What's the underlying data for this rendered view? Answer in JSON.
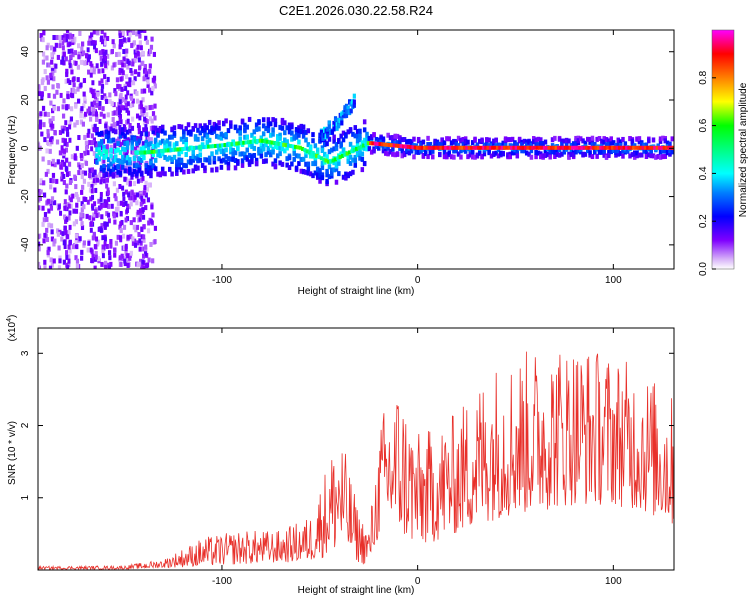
{
  "title": "C2E1.2026.030.22.58.R24",
  "colors": {
    "snr_line": "#e8302a",
    "axis": "#000000",
    "background": "#ffffff"
  },
  "chart_data": [
    {
      "type": "heatmap",
      "name": "spectrogram",
      "xlabel": "Height of straight line (km)",
      "ylabel": "Frequency (Hz)",
      "xlim": [
        -194,
        131
      ],
      "ylim": [
        -50,
        49
      ],
      "xticks": [
        -100,
        0,
        100
      ],
      "xtick_labels": [
        "-100",
        "0",
        "100"
      ],
      "yticks": [
        -40,
        -20,
        0,
        20,
        40
      ],
      "ytick_labels": [
        "-40",
        "-20",
        "0",
        "20",
        "40"
      ],
      "colorbar": {
        "label": "Normalized spectral amplitude",
        "range": [
          0,
          1
        ],
        "ticks": [
          0.0,
          0.2,
          0.4,
          0.6,
          0.8
        ],
        "tick_labels": [
          "0.0",
          "0.2",
          "0.4",
          "0.6",
          "0.8"
        ]
      },
      "ridge": {
        "description": "main frequency ridge near 0 Hz with bright core for heights > -25 km",
        "points": [
          {
            "x": -140,
            "y": -2
          },
          {
            "x": -100,
            "y": 1
          },
          {
            "x": -80,
            "y": 3
          },
          {
            "x": -60,
            "y": 0
          },
          {
            "x": -45,
            "y": -6
          },
          {
            "x": -35,
            "y": -2
          },
          {
            "x": -25,
            "y": 2
          },
          {
            "x": 0,
            "y": 0
          },
          {
            "x": 50,
            "y": 0
          },
          {
            "x": 100,
            "y": 0
          },
          {
            "x": 131,
            "y": 0
          }
        ],
        "branch": [
          {
            "x": -50,
            "y": 5
          },
          {
            "x": -40,
            "y": 11
          },
          {
            "x": -32,
            "y": 20
          }
        ]
      }
    },
    {
      "type": "line",
      "name": "snr",
      "xlabel": "Height of straight line (km)",
      "ylabel": "SNR (10 * v/v)",
      "multiplier_label": "(x10",
      "multiplier_exp": "4",
      "multiplier_close": ")",
      "xlim": [
        -194,
        131
      ],
      "ylim": [
        0,
        3.35
      ],
      "xticks": [
        -100,
        0,
        100
      ],
      "xtick_labels": [
        "-100",
        "0",
        "100"
      ],
      "yticks": [
        1,
        2,
        3
      ],
      "ytick_labels": [
        "1",
        "2",
        "3"
      ],
      "envelope": {
        "x": [
          -194,
          -150,
          -130,
          -110,
          -90,
          -70,
          -55,
          -45,
          -40,
          -30,
          -25,
          -18,
          -10,
          0,
          10,
          20,
          30,
          40,
          60,
          80,
          100,
          115,
          131
        ],
        "upper": [
          0.05,
          0.06,
          0.15,
          0.45,
          0.55,
          0.55,
          0.75,
          1.6,
          2.0,
          0.8,
          0.6,
          2.2,
          2.6,
          1.9,
          2.0,
          2.2,
          2.6,
          2.9,
          3.1,
          3.2,
          3.0,
          2.8,
          2.4
        ],
        "baseline": [
          0.01,
          0.01,
          0.03,
          0.05,
          0.08,
          0.1,
          0.12,
          0.2,
          0.3,
          0.1,
          0.05,
          0.6,
          0.5,
          0.3,
          0.4,
          0.5,
          0.6,
          0.7,
          0.8,
          0.9,
          0.9,
          0.8,
          0.6
        ]
      }
    }
  ]
}
